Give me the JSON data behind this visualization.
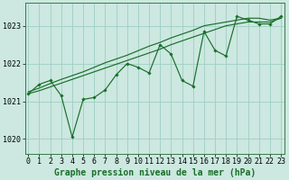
{
  "title": "Graphe pression niveau de la mer (hPa)",
  "background_color": "#cce8e0",
  "grid_color": "#9ecec4",
  "line_color": "#1a6e2a",
  "spine_color": "#3a7a4a",
  "x_values": [
    0,
    1,
    2,
    3,
    4,
    5,
    6,
    7,
    8,
    9,
    10,
    11,
    12,
    13,
    14,
    15,
    16,
    17,
    18,
    19,
    20,
    21,
    22,
    23
  ],
  "main_line": [
    1021.2,
    1021.45,
    1021.55,
    1021.15,
    1020.05,
    1021.05,
    1021.1,
    1021.3,
    1021.7,
    1022.0,
    1021.9,
    1021.75,
    1022.5,
    1022.25,
    1021.55,
    1021.4,
    1022.85,
    1022.35,
    1022.2,
    1023.25,
    1023.15,
    1023.05,
    1023.05,
    1023.25
  ],
  "trend_line1": [
    1021.25,
    1021.35,
    1021.47,
    1021.58,
    1021.68,
    1021.78,
    1021.9,
    1022.02,
    1022.12,
    1022.22,
    1022.34,
    1022.46,
    1022.56,
    1022.68,
    1022.78,
    1022.88,
    1023.0,
    1023.05,
    1023.1,
    1023.15,
    1023.2,
    1023.2,
    1023.15,
    1023.2
  ],
  "trend_line2": [
    1021.2,
    1021.28,
    1021.38,
    1021.48,
    1021.58,
    1021.68,
    1021.78,
    1021.88,
    1021.98,
    1022.08,
    1022.18,
    1022.28,
    1022.38,
    1022.5,
    1022.6,
    1022.7,
    1022.8,
    1022.9,
    1023.0,
    1023.05,
    1023.1,
    1023.1,
    1023.1,
    1023.2
  ],
  "ylim_min": 1019.6,
  "ylim_max": 1023.6,
  "yticks": [
    1020,
    1021,
    1022,
    1023
  ],
  "xticks": [
    0,
    1,
    2,
    3,
    4,
    5,
    6,
    7,
    8,
    9,
    10,
    11,
    12,
    13,
    14,
    15,
    16,
    17,
    18,
    19,
    20,
    21,
    22,
    23
  ],
  "tick_fontsize": 6,
  "title_fontsize": 7
}
